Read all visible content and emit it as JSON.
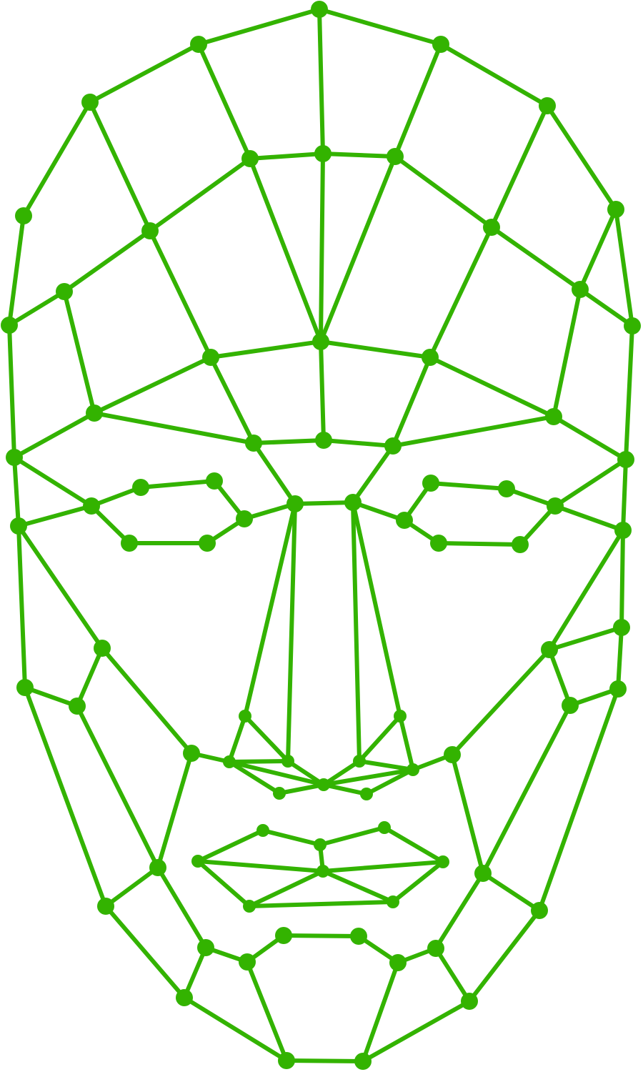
{
  "diagram": {
    "kind": "face-landmark-mesh",
    "colors": {
      "line": "#33b300",
      "node": "#33b300",
      "background": "#ffffff"
    }
  }
}
